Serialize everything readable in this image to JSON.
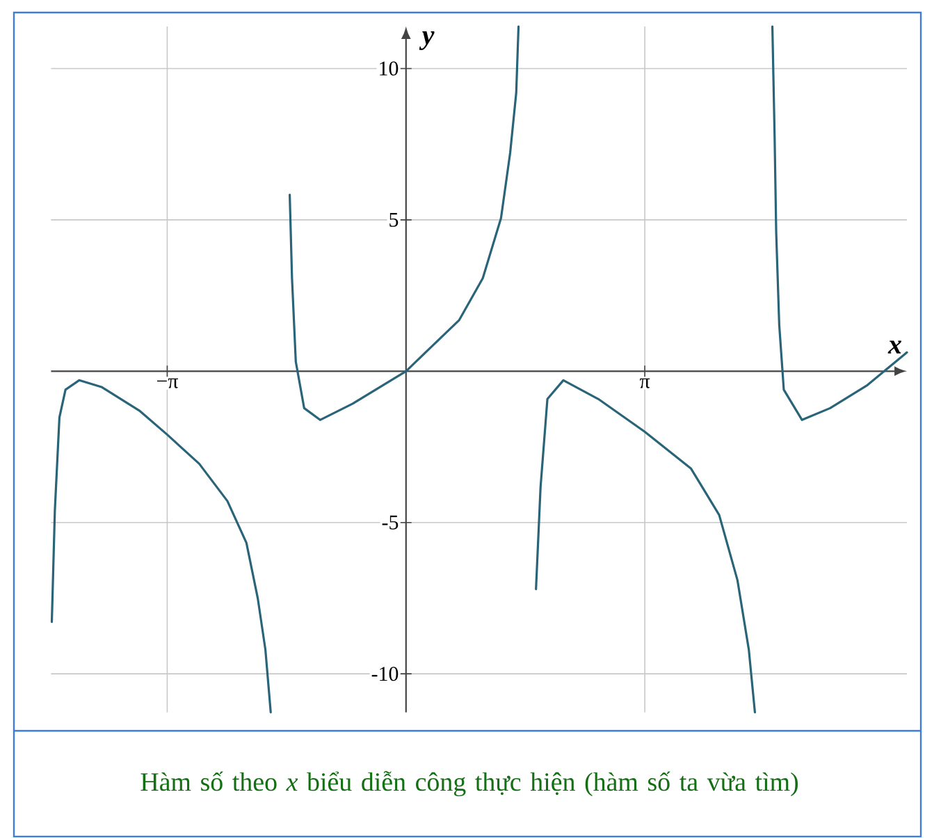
{
  "chart_data": {
    "type": "line",
    "xlabel": "x",
    "ylabel": "y",
    "xlim": [
      -4.67,
      6.59
    ],
    "ylim": [
      -11.27,
      11.39
    ],
    "xticks": [
      {
        "value": -3.1416,
        "label": "−π"
      },
      {
        "value": 3.1416,
        "label": "π"
      }
    ],
    "yticks": [
      -10,
      -5,
      5,
      10
    ],
    "grid": true,
    "series": [
      {
        "color": "#2a6478",
        "x": [
          -4.66,
          -4.62,
          -4.56,
          -4.48,
          -4.3,
          -4.0,
          -3.51,
          -3.14,
          -2.72,
          -2.35,
          -2.1,
          -1.95,
          -1.85,
          -1.78
        ],
        "values": [
          -8.28,
          -4.6,
          -1.53,
          -0.61,
          -0.3,
          -0.53,
          -1.3,
          -2.1,
          -3.06,
          -4.29,
          -5.67,
          -7.51,
          -9.2,
          -11.27
        ]
      },
      {
        "color": "#2a6478",
        "x": [
          -1.53,
          -1.5,
          -1.45,
          -1.34,
          -1.13,
          -0.7,
          0,
          0.7,
          1.01,
          1.25,
          1.37,
          1.45,
          1.48
        ],
        "values": [
          5.83,
          3.07,
          0.31,
          -1.22,
          -1.61,
          -1.07,
          0,
          1.69,
          3.07,
          5.06,
          7.21,
          9.2,
          11.39
        ]
      },
      {
        "color": "#2a6478",
        "x": [
          1.71,
          1.77,
          1.86,
          2.07,
          2.53,
          3.14,
          3.75,
          4.12,
          4.36,
          4.51,
          4.59
        ],
        "values": [
          -7.2,
          -3.83,
          -0.92,
          -0.3,
          -0.92,
          -2.0,
          -3.22,
          -4.75,
          -6.9,
          -9.2,
          -11.27
        ]
      },
      {
        "color": "#2a6478",
        "x": [
          4.82,
          4.85,
          4.87,
          4.91,
          4.97,
          5.21,
          5.58,
          6.07,
          6.59
        ],
        "values": [
          11.39,
          7.67,
          4.6,
          1.54,
          -0.61,
          -1.61,
          -1.22,
          -0.46,
          0.62
        ]
      }
    ],
    "annotations": [
      "Hàm số theo *x* biểu diễn công thực hiện (hàm số ta vừa tìm)"
    ]
  }
}
